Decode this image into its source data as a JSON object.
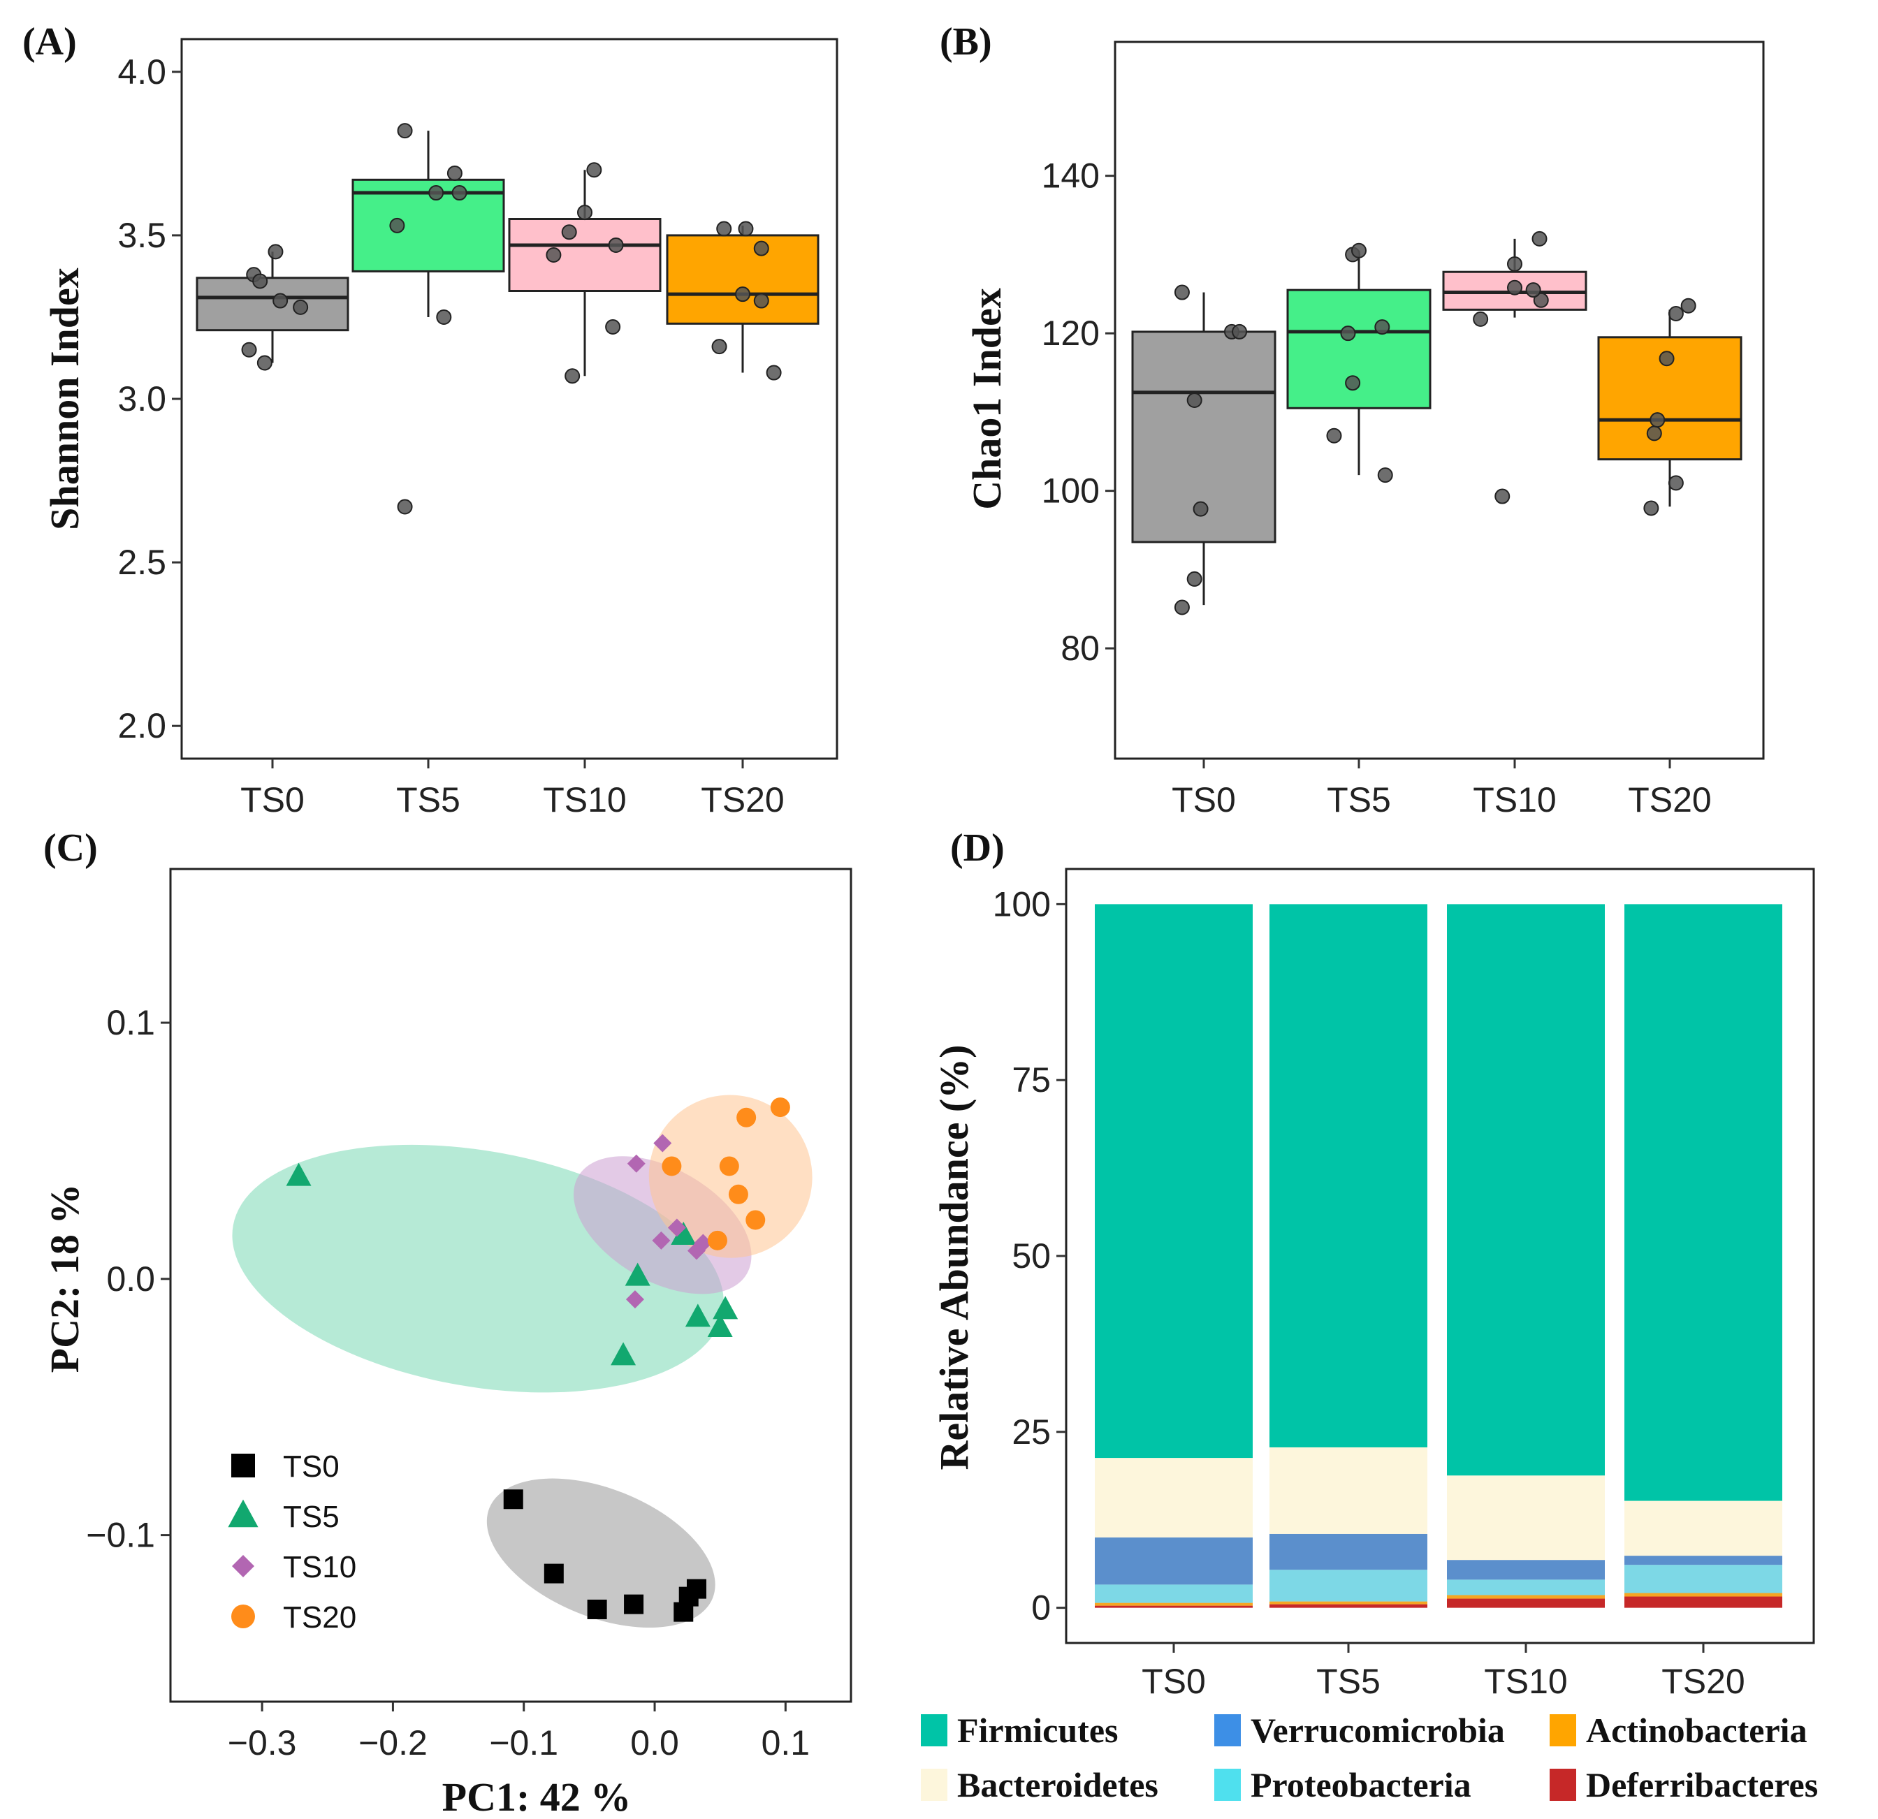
{
  "chart_data": [
    {
      "panel": "(A)",
      "type": "box",
      "ylabel": "Shannon Index",
      "xlabel": "",
      "categories": [
        "TS0",
        "TS5",
        "TS10",
        "TS20"
      ],
      "ylim": [
        1.9,
        4.1
      ],
      "yticks": [
        2.0,
        2.5,
        3.0,
        3.5,
        4.0
      ],
      "ytick_labels": [
        "2.0",
        "2.5",
        "3.0",
        "3.5",
        "4.0"
      ],
      "boxes": [
        {
          "name": "TS0",
          "q1": 3.21,
          "median": 3.31,
          "q3": 3.37,
          "whisker_low": 3.11,
          "whisker_high": 3.45,
          "color": "#a0a0a0"
        },
        {
          "name": "TS5",
          "q1": 3.39,
          "median": 3.63,
          "q3": 3.67,
          "whisker_low": 3.25,
          "whisker_high": 3.82,
          "color": "#45ef89"
        },
        {
          "name": "TS10",
          "q1": 3.33,
          "median": 3.47,
          "q3": 3.55,
          "whisker_low": 3.07,
          "whisker_high": 3.7,
          "color": "#ffc0cb"
        },
        {
          "name": "TS20",
          "q1": 3.23,
          "median": 3.32,
          "q3": 3.5,
          "whisker_low": 3.08,
          "whisker_high": 3.53,
          "color": "#ffa500"
        }
      ],
      "points": [
        {
          "cat": 0,
          "jitter": -0.05,
          "y": 3.11
        },
        {
          "cat": 0,
          "jitter": -0.15,
          "y": 3.15
        },
        {
          "cat": 0,
          "jitter": 0.05,
          "y": 3.3
        },
        {
          "cat": 0,
          "jitter": 0.18,
          "y": 3.28
        },
        {
          "cat": 0,
          "jitter": -0.12,
          "y": 3.38
        },
        {
          "cat": 0,
          "jitter": -0.08,
          "y": 3.36
        },
        {
          "cat": 0,
          "jitter": 0.02,
          "y": 3.45
        },
        {
          "cat": 1,
          "jitter": -0.15,
          "y": 2.67
        },
        {
          "cat": 1,
          "jitter": 0.1,
          "y": 3.25
        },
        {
          "cat": 1,
          "jitter": -0.2,
          "y": 3.53
        },
        {
          "cat": 1,
          "jitter": 0.05,
          "y": 3.63
        },
        {
          "cat": 1,
          "jitter": 0.2,
          "y": 3.63
        },
        {
          "cat": 1,
          "jitter": 0.17,
          "y": 3.69
        },
        {
          "cat": 1,
          "jitter": -0.15,
          "y": 3.82
        },
        {
          "cat": 2,
          "jitter": -0.08,
          "y": 3.07
        },
        {
          "cat": 2,
          "jitter": 0.18,
          "y": 3.22
        },
        {
          "cat": 2,
          "jitter": -0.2,
          "y": 3.44
        },
        {
          "cat": 2,
          "jitter": -0.1,
          "y": 3.51
        },
        {
          "cat": 2,
          "jitter": 0.2,
          "y": 3.47
        },
        {
          "cat": 2,
          "jitter": 0.0,
          "y": 3.57
        },
        {
          "cat": 2,
          "jitter": 0.06,
          "y": 3.7
        },
        {
          "cat": 3,
          "jitter": 0.2,
          "y": 3.08
        },
        {
          "cat": 3,
          "jitter": -0.15,
          "y": 3.16
        },
        {
          "cat": 3,
          "jitter": 0.12,
          "y": 3.3
        },
        {
          "cat": 3,
          "jitter": 0.0,
          "y": 3.32
        },
        {
          "cat": 3,
          "jitter": 0.12,
          "y": 3.46
        },
        {
          "cat": 3,
          "jitter": -0.12,
          "y": 3.52
        },
        {
          "cat": 3,
          "jitter": 0.02,
          "y": 3.52
        }
      ]
    },
    {
      "panel": "(B)",
      "type": "box",
      "ylabel": "Chao1 Index",
      "xlabel": "",
      "categories": [
        "TS0",
        "TS5",
        "TS10",
        "TS20"
      ],
      "ylim": [
        66,
        157
      ],
      "yticks": [
        80,
        100,
        120,
        140
      ],
      "ytick_labels": [
        "80",
        "100",
        "120",
        "140"
      ],
      "boxes": [
        {
          "name": "TS0",
          "q1": 93.5,
          "median": 112.5,
          "q3": 120.2,
          "whisker_low": 85.5,
          "whisker_high": 125.2,
          "color": "#a0a0a0"
        },
        {
          "name": "TS5",
          "q1": 110.5,
          "median": 120.2,
          "q3": 125.5,
          "whisker_low": 102.0,
          "whisker_high": 130.5,
          "color": "#45ef89"
        },
        {
          "name": "TS10",
          "q1": 123.0,
          "median": 125.2,
          "q3": 127.8,
          "whisker_low": 122.0,
          "whisker_high": 132.0,
          "color": "#ffc0cb"
        },
        {
          "name": "TS20",
          "q1": 104.0,
          "median": 109.0,
          "q3": 119.5,
          "whisker_low": 98.0,
          "whisker_high": 123.0,
          "color": "#ffa500"
        }
      ],
      "points": [
        {
          "cat": 0,
          "jitter": -0.14,
          "y": 85.2
        },
        {
          "cat": 0,
          "jitter": -0.06,
          "y": 88.8
        },
        {
          "cat": 0,
          "jitter": -0.02,
          "y": 97.7
        },
        {
          "cat": 0,
          "jitter": -0.06,
          "y": 111.5
        },
        {
          "cat": 0,
          "jitter": 0.18,
          "y": 120.2
        },
        {
          "cat": 0,
          "jitter": 0.23,
          "y": 120.2
        },
        {
          "cat": 0,
          "jitter": -0.14,
          "y": 125.2
        },
        {
          "cat": 1,
          "jitter": -0.16,
          "y": 107.0
        },
        {
          "cat": 1,
          "jitter": 0.17,
          "y": 102.0
        },
        {
          "cat": 1,
          "jitter": -0.04,
          "y": 113.7
        },
        {
          "cat": 1,
          "jitter": -0.07,
          "y": 120.0
        },
        {
          "cat": 1,
          "jitter": 0.15,
          "y": 120.8
        },
        {
          "cat": 1,
          "jitter": -0.04,
          "y": 130.0
        },
        {
          "cat": 1,
          "jitter": 0.0,
          "y": 130.5
        },
        {
          "cat": 2,
          "jitter": -0.08,
          "y": 99.3
        },
        {
          "cat": 2,
          "jitter": -0.22,
          "y": 121.8
        },
        {
          "cat": 2,
          "jitter": 0.17,
          "y": 124.2
        },
        {
          "cat": 2,
          "jitter": 0.12,
          "y": 125.5
        },
        {
          "cat": 2,
          "jitter": 0.0,
          "y": 125.8
        },
        {
          "cat": 2,
          "jitter": 0.0,
          "y": 128.8
        },
        {
          "cat": 2,
          "jitter": 0.16,
          "y": 132.0
        },
        {
          "cat": 3,
          "jitter": -0.12,
          "y": 97.8
        },
        {
          "cat": 3,
          "jitter": 0.04,
          "y": 101.0
        },
        {
          "cat": 3,
          "jitter": -0.1,
          "y": 107.3
        },
        {
          "cat": 3,
          "jitter": -0.08,
          "y": 109.0
        },
        {
          "cat": 3,
          "jitter": -0.02,
          "y": 116.8
        },
        {
          "cat": 3,
          "jitter": 0.04,
          "y": 122.5
        },
        {
          "cat": 3,
          "jitter": 0.12,
          "y": 123.5
        }
      ]
    },
    {
      "panel": "(C)",
      "type": "scatter",
      "xlabel": "PC1: 42 %",
      "ylabel": "PC2: 18 %",
      "xlim": [
        -0.37,
        0.15
      ],
      "ylim": [
        -0.165,
        0.16
      ],
      "xticks": [
        -0.3,
        -0.2,
        -0.1,
        0.0,
        0.1
      ],
      "xtick_labels": [
        "−0.3",
        "−0.2",
        "−0.1",
        "0.0",
        "0.1"
      ],
      "yticks": [
        -0.1,
        0.0,
        0.1
      ],
      "ytick_labels": [
        "−0.1",
        "0.0",
        "0.1"
      ],
      "series": [
        {
          "name": "TS0",
          "marker": "square",
          "color": "#000000",
          "ellipse_color": "#999999",
          "ellipse": {
            "cx": -0.041,
            "cy": -0.107,
            "rx": 0.092,
            "ry": 0.025,
            "angle_deg": 22
          },
          "points": [
            [
              -0.108,
              -0.086
            ],
            [
              -0.077,
              -0.115
            ],
            [
              -0.044,
              -0.129
            ],
            [
              -0.016,
              -0.127
            ],
            [
              0.022,
              -0.13
            ],
            [
              0.026,
              -0.124
            ],
            [
              0.032,
              -0.121
            ]
          ]
        },
        {
          "name": "TS5",
          "marker": "triangle",
          "color": "#12a86f",
          "ellipse_color": "#7ad9b5",
          "ellipse": {
            "cx": -0.135,
            "cy": 0.004,
            "rx": 0.19,
            "ry": 0.046,
            "angle_deg": 10
          },
          "points": [
            [
              -0.272,
              0.04
            ],
            [
              -0.024,
              -0.03
            ],
            [
              -0.013,
              0.001
            ],
            [
              0.022,
              0.017
            ],
            [
              0.033,
              -0.015
            ],
            [
              0.05,
              -0.019
            ],
            [
              0.054,
              -0.012
            ]
          ]
        },
        {
          "name": "TS10",
          "marker": "diamond",
          "color": "#b266b2",
          "ellipse_color": "#cc9fd1",
          "ellipse": {
            "cx": 0.006,
            "cy": 0.021,
            "rx": 0.043,
            "ry": 0.038,
            "angle_deg": -60
          },
          "points": [
            [
              -0.014,
              0.045
            ],
            [
              0.006,
              0.053
            ],
            [
              0.005,
              0.015
            ],
            [
              0.017,
              0.02
            ],
            [
              0.032,
              0.011
            ],
            [
              0.037,
              0.014
            ],
            [
              -0.015,
              -0.008
            ]
          ]
        },
        {
          "name": "TS20",
          "marker": "circle",
          "color": "#ff8c1a",
          "ellipse_color": "#ffc591",
          "ellipse": {
            "cx": 0.058,
            "cy": 0.04,
            "rx": 0.062,
            "ry": 0.032,
            "angle_deg": -52
          },
          "points": [
            [
              0.096,
              0.067
            ],
            [
              0.07,
              0.063
            ],
            [
              0.013,
              0.044
            ],
            [
              0.057,
              0.044
            ],
            [
              0.064,
              0.033
            ],
            [
              0.077,
              0.023
            ],
            [
              0.048,
              0.015
            ]
          ]
        }
      ]
    },
    {
      "panel": "(D)",
      "type": "bar",
      "stacked": true,
      "ylabel": "Relative Abundance (%)",
      "xlabel": "",
      "categories": [
        "TS0",
        "TS5",
        "TS10",
        "TS20"
      ],
      "ylim": [
        -5,
        105
      ],
      "yticks": [
        0,
        25,
        50,
        75,
        100
      ],
      "ytick_labels": [
        "0",
        "25",
        "50",
        "75",
        "100"
      ],
      "series": [
        {
          "name": "Deferribacteres",
          "color": "#c62828",
          "values": [
            0.3,
            0.5,
            1.3,
            1.6
          ]
        },
        {
          "name": "Actinobacteria",
          "color": "#f5a623",
          "values": [
            0.4,
            0.4,
            0.5,
            0.5
          ]
        },
        {
          "name": "Proteobacteria",
          "color": "#7dd8e6",
          "values": [
            2.6,
            4.5,
            2.2,
            4.0
          ]
        },
        {
          "name": "Verrucomicrobia",
          "color": "#5b8fcc",
          "values": [
            6.7,
            5.1,
            2.8,
            1.3
          ]
        },
        {
          "name": "Bacteroidetes",
          "color": "#fdf6dc",
          "values": [
            11.3,
            12.3,
            12.0,
            7.8
          ]
        },
        {
          "name": "Firmicutes",
          "color": "#00c4a7",
          "values": [
            78.7,
            77.2,
            81.2,
            84.8
          ]
        }
      ],
      "legend": [
        {
          "name": "Firmicutes",
          "color": "#00c4a7"
        },
        {
          "name": "Verrucomicrobia",
          "color": "#3d8fe6"
        },
        {
          "name": "Actinobacteria",
          "color": "#ffa500"
        },
        {
          "name": "Bacteroidetes",
          "color": "#fdf6dc"
        },
        {
          "name": "Proteobacteria",
          "color": "#4fe0ee"
        },
        {
          "name": "Deferribacteres",
          "color": "#c62828"
        }
      ]
    }
  ]
}
